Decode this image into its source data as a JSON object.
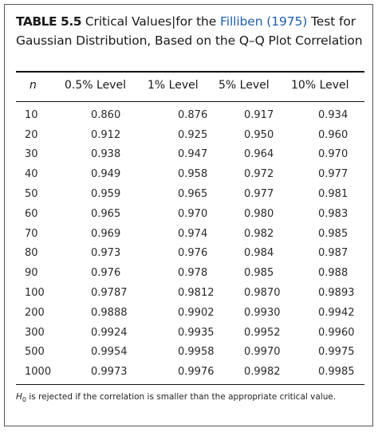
{
  "caption": {
    "label": "TABLE 5.5",
    "text_before": "Critical Values|for the ",
    "citation": "Filliben (1975)",
    "text_after": " Test for Gaussian Distribution, Based on the Q–Q Plot Correlation"
  },
  "headers": {
    "n": "n",
    "level_0_5": "0.5% Level",
    "level_1": "1% Level",
    "level_5": "5% Level",
    "level_10": "10% Level"
  },
  "rows": [
    {
      "n": "10",
      "l05": "0.860",
      "l1": "0.876",
      "l5": "0.917",
      "l10": "0.934"
    },
    {
      "n": "20",
      "l05": "0.912",
      "l1": "0.925",
      "l5": "0.950",
      "l10": "0.960"
    },
    {
      "n": "30",
      "l05": "0.938",
      "l1": "0.947",
      "l5": "0.964",
      "l10": "0.970"
    },
    {
      "n": "40",
      "l05": "0.949",
      "l1": "0.958",
      "l5": "0.972",
      "l10": "0.977"
    },
    {
      "n": "50",
      "l05": "0.959",
      "l1": "0.965",
      "l5": "0.977",
      "l10": "0.981"
    },
    {
      "n": "60",
      "l05": "0.965",
      "l1": "0.970",
      "l5": "0.980",
      "l10": "0.983"
    },
    {
      "n": "70",
      "l05": "0.969",
      "l1": "0.974",
      "l5": "0.982",
      "l10": "0.985"
    },
    {
      "n": "80",
      "l05": "0.973",
      "l1": "0.976",
      "l5": "0.984",
      "l10": "0.987"
    },
    {
      "n": "90",
      "l05": "0.976",
      "l1": "0.978",
      "l5": "0.985",
      "l10": "0.988"
    },
    {
      "n": "100",
      "l05": "0.9787",
      "l1": "0.9812",
      "l5": "0.9870",
      "l10": "0.9893"
    },
    {
      "n": "200",
      "l05": "0.9888",
      "l1": "0.9902",
      "l5": "0.9930",
      "l10": "0.9942"
    },
    {
      "n": "300",
      "l05": "0.9924",
      "l1": "0.9935",
      "l5": "0.9952",
      "l10": "0.9960"
    },
    {
      "n": "500",
      "l05": "0.9954",
      "l1": "0.9958",
      "l5": "0.9970",
      "l10": "0.9975"
    },
    {
      "n": "1000",
      "l05": "0.9973",
      "l1": "0.9976",
      "l5": "0.9982",
      "l10": "0.9985"
    }
  ],
  "footnote": {
    "symbol": "H",
    "symbol_sub": "0",
    "text": " is rejected if the correlation is smaller than the appropriate critical value."
  },
  "colors": {
    "citation": "#1f5fa8",
    "rule": "#111111",
    "frame": "#555555"
  }
}
